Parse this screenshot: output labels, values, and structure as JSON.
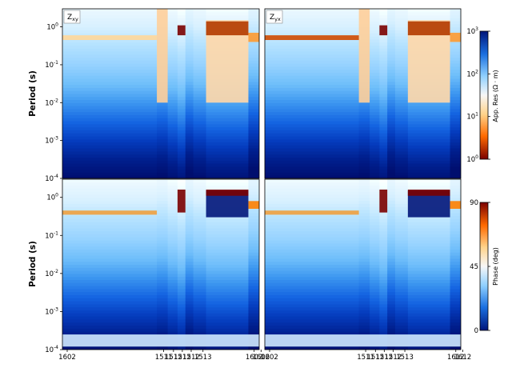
{
  "chart_data": {
    "type": "heatmap",
    "figure": "pseudosection",
    "ylabel": "Period (s)",
    "yscale": "log",
    "ylim": [
      0.0001,
      3
    ],
    "yticks": [
      {
        "value": 1,
        "label": "10^0"
      },
      {
        "value": 0.1,
        "label": "10^-1"
      },
      {
        "value": 0.01,
        "label": "10^-2"
      },
      {
        "value": 0.001,
        "label": "10^-3"
      },
      {
        "value": 0.0001,
        "label": "10^-4"
      }
    ],
    "xtick_labels": [
      "1602",
      "1511",
      "1512",
      "1512",
      "1512",
      "1513",
      "1602",
      "1602"
    ],
    "xtick_labels_right": [
      "1602",
      "1511",
      "1512",
      "1512",
      "1512",
      "1513",
      "1612",
      "1612"
    ],
    "panels": [
      {
        "id": "zxy-res",
        "tag_main": "Z",
        "tag_sub": "xy",
        "quantity": "apparent-resistivity"
      },
      {
        "id": "zyx-res",
        "tag_main": "Z",
        "tag_sub": "yx",
        "quantity": "apparent-resistivity"
      },
      {
        "id": "zxy-phase",
        "tag_main": "",
        "tag_sub": "",
        "quantity": "phase"
      },
      {
        "id": "zyx-phase",
        "tag_main": "",
        "tag_sub": "",
        "quantity": "phase"
      }
    ],
    "colorbars": [
      {
        "id": "resistivity",
        "label": "App. Res (Ω · m)",
        "scale": "log",
        "range": [
          1,
          1000
        ],
        "ticks": [
          {
            "value": 1000,
            "label": "10^3"
          },
          {
            "value": 100,
            "label": "10^2"
          },
          {
            "value": 10,
            "label": "10^1"
          },
          {
            "value": 1,
            "label": "10^0"
          }
        ],
        "colormap": "red-white-blue"
      },
      {
        "id": "phase",
        "label": "Phase (deg)",
        "scale": "linear",
        "range": [
          0,
          90
        ],
        "ticks": [
          {
            "value": 90,
            "label": "90"
          },
          {
            "value": 45,
            "label": "45"
          },
          {
            "value": 0,
            "label": "0"
          }
        ],
        "colormap": "blue-white-red"
      }
    ],
    "colors": {
      "deep_blue": "#00157a",
      "light": "#f7f7f7",
      "dark_red": "#7a0000",
      "orange": "#ff7f00"
    }
  }
}
